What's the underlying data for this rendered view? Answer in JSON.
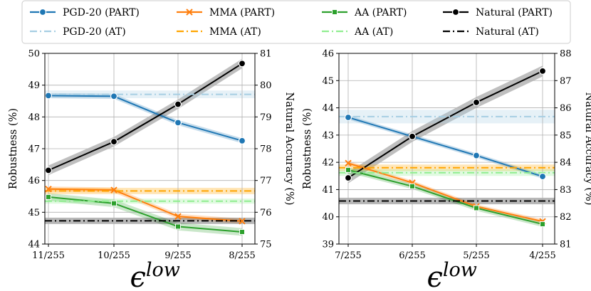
{
  "legend": {
    "entries": [
      {
        "label": "PGD-20 (PART)",
        "color": "#1f77b4",
        "style": "solid",
        "marker": "o"
      },
      {
        "label": "MMA (PART)",
        "color": "#ff7f0e",
        "style": "solid",
        "marker": "x"
      },
      {
        "label": "AA (PART)",
        "color": "#2ca02c",
        "style": "solid",
        "marker": "s"
      },
      {
        "label": "Natural (PART)",
        "color": "#000000",
        "style": "solid",
        "marker": "o"
      },
      {
        "label": "PGD-20 (AT)",
        "color": "#a6cee3",
        "style": "dashdot",
        "marker": ""
      },
      {
        "label": "MMA (AT)",
        "color": "#ffa500",
        "style": "dashdot",
        "marker": ""
      },
      {
        "label": "AA (AT)",
        "color": "#90ee90",
        "style": "dashdot",
        "marker": ""
      },
      {
        "label": "Natural (AT)",
        "color": "#000000",
        "style": "dashdot",
        "marker": ""
      }
    ]
  },
  "chart_data": [
    {
      "type": "line",
      "categories": [
        "11/255",
        "10/255",
        "9/255",
        "8/255"
      ],
      "xlabel_base": "ϵ",
      "xlabel_sup": "low",
      "ylabel": "Robustness (%)",
      "ylabel_right": "Natural Accuracy (%)",
      "ylim": [
        44,
        50
      ],
      "yticks": [
        "44",
        "45",
        "46",
        "47",
        "48",
        "49",
        "50"
      ],
      "ylim_right": [
        75,
        81
      ],
      "yticks_right": [
        "75",
        "76",
        "77",
        "78",
        "79",
        "80",
        "81"
      ],
      "grid": true,
      "series": [
        {
          "name": "PGD-20 (PART)",
          "axis": "left",
          "values": [
            48.67,
            48.65,
            47.82,
            47.25
          ],
          "band": 0.08
        },
        {
          "name": "MMA (PART)",
          "axis": "left",
          "values": [
            45.73,
            45.7,
            44.87,
            44.72
          ],
          "band": 0.08
        },
        {
          "name": "AA (PART)",
          "axis": "left",
          "values": [
            45.48,
            45.28,
            44.55,
            44.38
          ],
          "band": 0.12
        },
        {
          "name": "Natural (PART)",
          "axis": "right",
          "values": [
            77.32,
            78.22,
            79.4,
            80.68
          ],
          "band": 0.15
        },
        {
          "name": "PGD-20 (AT)",
          "axis": "left",
          "constant": 48.71,
          "band": 0.12
        },
        {
          "name": "MMA (AT)",
          "axis": "left",
          "constant": 45.67,
          "band": 0.1
        },
        {
          "name": "AA (AT)",
          "axis": "left",
          "constant": 45.35,
          "band": 0.08
        },
        {
          "name": "Natural (AT)",
          "axis": "right",
          "constant": 75.73,
          "band": 0.1
        }
      ]
    },
    {
      "type": "line",
      "categories": [
        "7/255",
        "6/255",
        "5/255",
        "4/255"
      ],
      "xlabel_base": "ϵ",
      "xlabel_sup": "low",
      "ylabel": "Robustness (%)",
      "ylabel_right": "Natural Accuracy (%)",
      "ylim": [
        39,
        46
      ],
      "yticks": [
        "39",
        "40",
        "41",
        "42",
        "43",
        "44",
        "45",
        "46"
      ],
      "ylim_right": [
        81,
        88
      ],
      "yticks_right": [
        "81",
        "82",
        "83",
        "84",
        "85",
        "86",
        "87",
        "88"
      ],
      "grid": true,
      "series": [
        {
          "name": "PGD-20 (PART)",
          "axis": "left",
          "values": [
            43.65,
            42.95,
            42.25,
            41.48
          ],
          "band": 0.08
        },
        {
          "name": "MMA (PART)",
          "axis": "left",
          "values": [
            41.97,
            41.25,
            40.38,
            39.83
          ],
          "band": 0.08
        },
        {
          "name": "AA (PART)",
          "axis": "left",
          "values": [
            41.72,
            41.12,
            40.32,
            39.73
          ],
          "band": 0.1
        },
        {
          "name": "Natural (PART)",
          "axis": "right",
          "values": [
            83.43,
            84.95,
            86.2,
            87.35
          ],
          "band": 0.2
        },
        {
          "name": "PGD-20 (AT)",
          "axis": "left",
          "constant": 43.68,
          "band": 0.25
        },
        {
          "name": "MMA (AT)",
          "axis": "left",
          "constant": 41.8,
          "band": 0.12
        },
        {
          "name": "AA (AT)",
          "axis": "left",
          "constant": 41.62,
          "band": 0.12
        },
        {
          "name": "Natural (AT)",
          "axis": "right",
          "constant": 82.58,
          "band": 0.12
        }
      ]
    }
  ]
}
